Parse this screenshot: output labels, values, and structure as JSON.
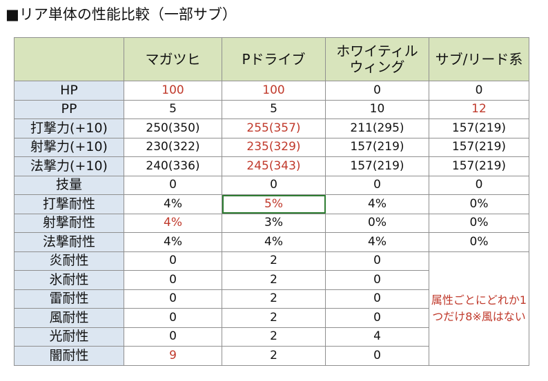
{
  "title": "■リア単体の性能比較（一部サブ）",
  "columns": [
    {
      "label": "マガツヒ"
    },
    {
      "label": "Pドライブ"
    },
    {
      "label": "ホワイティルウィング"
    },
    {
      "label": "サブ/リード系"
    }
  ],
  "rows": [
    {
      "label": "HP",
      "values": [
        "100",
        "100",
        "0",
        "0"
      ],
      "highlight": [
        true,
        true,
        false,
        false
      ]
    },
    {
      "label": "PP",
      "values": [
        "5",
        "5",
        "10",
        "12"
      ],
      "highlight": [
        false,
        false,
        false,
        true
      ]
    },
    {
      "label": "打撃力(+10)",
      "values": [
        "250(350)",
        "255(357)",
        "211(295)",
        "157(219)"
      ],
      "highlight": [
        false,
        true,
        false,
        false
      ]
    },
    {
      "label": "射撃力(+10)",
      "values": [
        "230(322)",
        "235(329)",
        "157(219)",
        "157(219)"
      ],
      "highlight": [
        false,
        true,
        false,
        false
      ]
    },
    {
      "label": "法撃力(+10)",
      "values": [
        "240(336)",
        "245(343)",
        "157(219)",
        "157(219)"
      ],
      "highlight": [
        false,
        true,
        false,
        false
      ]
    },
    {
      "label": "技量",
      "values": [
        "0",
        "0",
        "0",
        "0"
      ],
      "highlight": [
        false,
        false,
        false,
        false
      ]
    },
    {
      "label": "打撃耐性",
      "values": [
        "4%",
        "5%",
        "4%",
        "0%"
      ],
      "highlight": [
        false,
        true,
        false,
        false
      ]
    },
    {
      "label": "射撃耐性",
      "values": [
        "4%",
        "3%",
        "0%",
        "0%"
      ],
      "highlight": [
        true,
        false,
        false,
        false
      ]
    },
    {
      "label": "法撃耐性",
      "values": [
        "4%",
        "4%",
        "4%",
        "0%"
      ],
      "highlight": [
        false,
        false,
        false,
        false
      ]
    },
    {
      "label": "炎耐性",
      "values": [
        "0",
        "2",
        "0"
      ],
      "highlight": [
        false,
        false,
        false
      ]
    },
    {
      "label": "氷耐性",
      "values": [
        "0",
        "2",
        "0"
      ],
      "highlight": [
        false,
        false,
        false
      ]
    },
    {
      "label": "雷耐性",
      "values": [
        "0",
        "2",
        "0"
      ],
      "highlight": [
        false,
        false,
        false
      ]
    },
    {
      "label": "風耐性",
      "values": [
        "0",
        "2",
        "0"
      ],
      "highlight": [
        false,
        false,
        false
      ]
    },
    {
      "label": "光耐性",
      "values": [
        "0",
        "2",
        "4"
      ],
      "highlight": [
        false,
        false,
        false
      ]
    },
    {
      "label": "闇耐性",
      "values": [
        "9",
        "2",
        "0"
      ],
      "highlight": [
        true,
        false,
        false
      ]
    }
  ],
  "note": "属性ごとにどれか1つだけ8※風はない",
  "colors": {
    "highlight": "#c0392b",
    "header_bg": "#d8e4bc",
    "row_header_bg": "#dce6f1",
    "selection": "#2e7d32"
  }
}
